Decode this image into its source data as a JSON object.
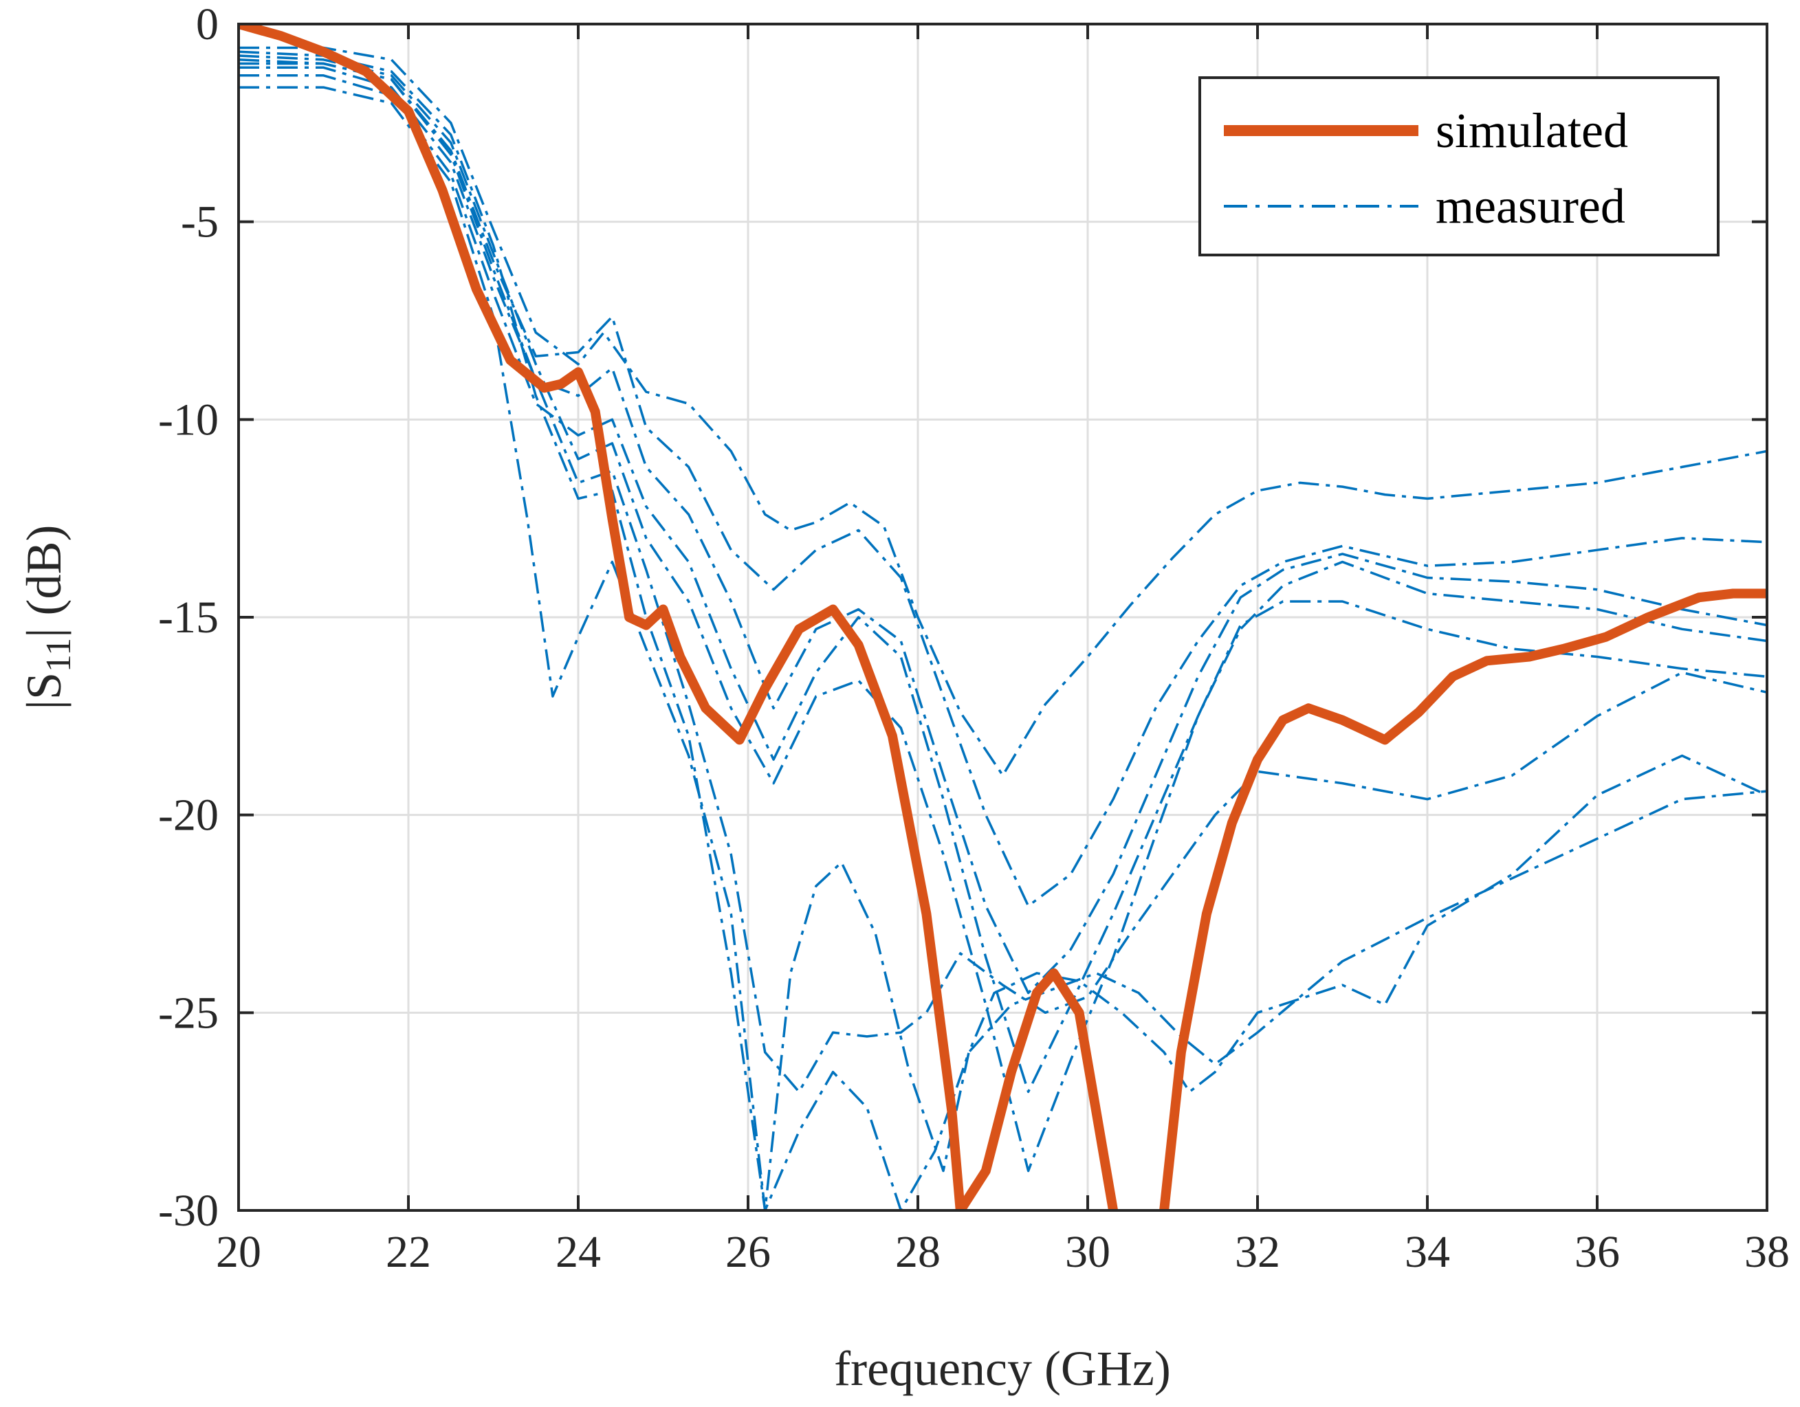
{
  "chart_data": {
    "type": "line",
    "title": "",
    "xlabel": "frequency (GHz)",
    "ylabel_main": "|S",
    "ylabel_sub": "11",
    "ylabel_tail": "| (dB)",
    "xlim": [
      20,
      38
    ],
    "ylim": [
      -30,
      0
    ],
    "xticks": [
      20,
      22,
      24,
      26,
      28,
      30,
      32,
      34,
      36,
      38
    ],
    "yticks": [
      0,
      -5,
      -10,
      -15,
      -20,
      -25,
      -30
    ],
    "xtick_labels": [
      "20",
      "22",
      "24",
      "26",
      "28",
      "30",
      "32",
      "34",
      "36",
      "38"
    ],
    "ytick_labels": [
      "0",
      "-5",
      "-10",
      "-15",
      "-20",
      "-25",
      "-30"
    ],
    "grid": true,
    "legend_position": "top-right",
    "legend": [
      {
        "label": "simulated",
        "color": "#D95319",
        "style": "solid"
      },
      {
        "label": "measured",
        "color": "#0072BD",
        "style": "dash-dot"
      }
    ],
    "series": [
      {
        "name": "simulated",
        "color": "#D95319",
        "style": "solid",
        "x": [
          20,
          20.5,
          21,
          21.5,
          22,
          22.4,
          22.8,
          23.2,
          23.6,
          23.8,
          24,
          24.2,
          24.4,
          24.6,
          24.8,
          25,
          25.2,
          25.5,
          25.9,
          26.2,
          26.6,
          27,
          27.3,
          27.7,
          28.1,
          28.4,
          28.5,
          28.8,
          29.1,
          29.4,
          29.6,
          29.9,
          30.1,
          30.3
        ],
        "y": [
          0,
          -0.3,
          -0.7,
          -1.2,
          -2.2,
          -4.2,
          -6.7,
          -8.5,
          -9.2,
          -9.1,
          -8.8,
          -9.8,
          -12.5,
          -15.0,
          -15.2,
          -14.8,
          -16.0,
          -17.3,
          -18.1,
          -16.8,
          -15.3,
          -14.8,
          -15.7,
          -18.0,
          -22.5,
          -27.5,
          -30,
          -29,
          -26.5,
          -24.5,
          -24.0,
          -25.0,
          -27.5,
          -30
        ]
      },
      {
        "name": "simulated-2",
        "color": "#D95319",
        "style": "solid",
        "x": [
          30.9,
          31.1,
          31.4,
          31.7,
          32.0,
          32.3,
          32.6,
          33.0,
          33.5,
          33.9,
          34.3,
          34.7,
          35.2,
          35.6,
          36.1,
          36.6,
          37.2,
          37.6,
          38
        ],
        "y": [
          -30,
          -26.0,
          -22.5,
          -20.2,
          -18.6,
          -17.6,
          -17.3,
          -17.6,
          -18.1,
          -17.4,
          -16.5,
          -16.1,
          -16.0,
          -15.8,
          -15.5,
          -15.0,
          -14.5,
          -14.4,
          -14.4
        ]
      },
      {
        "name": "measured-1",
        "color": "#0072BD",
        "style": "dash-dot",
        "x": [
          20,
          21,
          21.8,
          22.5,
          23,
          23.5,
          24,
          24.3,
          24.8,
          25.3,
          25.8,
          26.2,
          26.5,
          26.8,
          27.2,
          27.6,
          28,
          28.5,
          29,
          29.5,
          30,
          30.5,
          31,
          31.5,
          32,
          32.5,
          33,
          33.5,
          34,
          35,
          36,
          37,
          38
        ],
        "y": [
          -0.6,
          -0.6,
          -0.9,
          -2.5,
          -5.2,
          -7.8,
          -8.6,
          -7.8,
          -9.3,
          -9.6,
          -10.8,
          -12.4,
          -12.8,
          -12.6,
          -12.1,
          -12.7,
          -15.0,
          -17.4,
          -19.0,
          -17.2,
          -16.0,
          -14.7,
          -13.5,
          -12.4,
          -11.8,
          -11.6,
          -11.7,
          -11.9,
          -12.0,
          -11.8,
          -11.6,
          -11.2,
          -10.8
        ]
      },
      {
        "name": "measured-2",
        "color": "#0072BD",
        "style": "dash-dot",
        "x": [
          20,
          21,
          21.8,
          22.5,
          23,
          23.5,
          24,
          24.4,
          24.8,
          25.3,
          25.8,
          26.3,
          26.8,
          27.3,
          27.8,
          28.3,
          28.8,
          29.3,
          29.8,
          30.3,
          30.8,
          31.3,
          31.8,
          32.3,
          33,
          34,
          35,
          36,
          37,
          38
        ],
        "y": [
          -0.9,
          -1.0,
          -1.4,
          -3.2,
          -6.0,
          -8.4,
          -8.3,
          -7.4,
          -10.2,
          -11.2,
          -13.3,
          -14.3,
          -13.3,
          -12.8,
          -14.0,
          -17.0,
          -20.0,
          -22.3,
          -21.5,
          -19.6,
          -17.3,
          -15.6,
          -14.2,
          -13.6,
          -13.2,
          -13.7,
          -13.6,
          -13.3,
          -13.0,
          -13.1
        ]
      },
      {
        "name": "measured-3",
        "color": "#0072BD",
        "style": "dash-dot",
        "x": [
          20,
          21,
          21.8,
          22.5,
          23,
          23.5,
          24,
          24.4,
          24.8,
          25.3,
          25.8,
          26.3,
          26.8,
          27.3,
          27.8,
          28.3,
          28.8,
          29.3,
          29.8,
          30.3,
          30.8,
          31.3,
          31.8,
          32.3,
          33,
          34,
          35,
          36,
          37,
          38
        ],
        "y": [
          -1.1,
          -1.1,
          -1.6,
          -3.5,
          -6.4,
          -9.0,
          -9.4,
          -8.7,
          -11.2,
          -12.4,
          -14.6,
          -17.3,
          -15.3,
          -14.8,
          -15.6,
          -19.0,
          -22.3,
          -24.5,
          -23.4,
          -21.5,
          -19.0,
          -16.5,
          -14.5,
          -13.8,
          -13.4,
          -14.0,
          -14.1,
          -14.3,
          -14.8,
          -15.2
        ]
      },
      {
        "name": "measured-4",
        "color": "#0072BD",
        "style": "dash-dot",
        "x": [
          20,
          21,
          21.8,
          22.5,
          23,
          23.5,
          24,
          24.4,
          24.8,
          25.3,
          25.8,
          26.3,
          26.8,
          27.3,
          27.8,
          28.3,
          28.8,
          29.3,
          29.8,
          30.3,
          30.8,
          31.3,
          31.8,
          32.3,
          33,
          34,
          35,
          36,
          37,
          38
        ],
        "y": [
          -1.3,
          -1.3,
          -1.8,
          -3.8,
          -6.8,
          -9.6,
          -10.4,
          -10.0,
          -12.2,
          -13.6,
          -16.3,
          -18.6,
          -16.4,
          -15.0,
          -16.0,
          -19.6,
          -23.6,
          -27.0,
          -24.8,
          -22.5,
          -20.0,
          -17.5,
          -15.3,
          -14.2,
          -13.6,
          -14.4,
          -14.6,
          -14.8,
          -15.3,
          -15.6
        ]
      },
      {
        "name": "measured-5",
        "color": "#0072BD",
        "style": "dash-dot",
        "x": [
          20,
          21,
          21.8,
          22.5,
          23,
          23.5,
          24,
          24.4,
          24.8,
          25.3,
          25.8,
          26.3,
          26.8,
          27.3,
          27.8,
          28.3,
          28.8,
          29.3,
          29.8,
          30.3,
          30.8,
          31.3,
          31.8,
          32.3,
          33,
          34,
          35,
          36,
          37,
          38
        ],
        "y": [
          -0.8,
          -0.9,
          -1.3,
          -3.0,
          -5.8,
          -8.6,
          -11.0,
          -10.6,
          -13.0,
          -14.6,
          -17.3,
          -19.2,
          -17.0,
          -16.6,
          -17.8,
          -21.0,
          -24.8,
          -29.0,
          -26.2,
          -23.6,
          -20.5,
          -17.5,
          -15.2,
          -14.6,
          -14.6,
          -15.3,
          -15.8,
          -16.0,
          -16.3,
          -16.5
        ]
      },
      {
        "name": "measured-6",
        "color": "#0072BD",
        "style": "dash-dot",
        "x": [
          20,
          21,
          21.8,
          22.5,
          23,
          23.5,
          24,
          24.4,
          24.8,
          25.3,
          25.8,
          26.2,
          26.6,
          27.0,
          27.4,
          27.8,
          28.1,
          28.5,
          29.0,
          29.5,
          30.0,
          30.5,
          31.0,
          31.5,
          32,
          33,
          34,
          35,
          36,
          37,
          38
        ],
        "y": [
          -1.0,
          -1.0,
          -1.4,
          -3.3,
          -6.2,
          -9.0,
          -11.6,
          -11.3,
          -13.8,
          -17.2,
          -21.0,
          -26.0,
          -27.0,
          -25.5,
          -25.6,
          -25.5,
          -25.0,
          -23.5,
          -24.3,
          -25.0,
          -24.6,
          -23.0,
          -21.5,
          -20.0,
          -18.9,
          -19.2,
          -19.6,
          -19.0,
          -17.5,
          -16.4,
          -16.9
        ]
      },
      {
        "name": "measured-7",
        "color": "#0072BD",
        "style": "dash-dot",
        "x": [
          20,
          21,
          21.8,
          22.5,
          23,
          23.4,
          23.7,
          24.0,
          24.4,
          24.8,
          25.3,
          25.8,
          26.2,
          26.5,
          26.8,
          27.1,
          27.5,
          27.9,
          28.3,
          28.6,
          28.9,
          29.4,
          29.9,
          30.4,
          30.9,
          31.2,
          31.5,
          32,
          33,
          33.5,
          34,
          35,
          36,
          37,
          38
        ],
        "y": [
          -1.6,
          -1.6,
          -2.0,
          -4.0,
          -7.4,
          -12.5,
          -17.0,
          -15.5,
          -13.6,
          -15.8,
          -18.5,
          -22.5,
          -30.0,
          -24.0,
          -21.8,
          -21.2,
          -23.0,
          -26.5,
          -29.0,
          -26.0,
          -24.5,
          -24.0,
          -24.2,
          -25.0,
          -26.0,
          -27.0,
          -26.5,
          -25.0,
          -24.3,
          -24.8,
          -22.8,
          -21.5,
          -19.5,
          -18.5,
          -19.5
        ]
      },
      {
        "name": "measured-8",
        "color": "#0072BD",
        "style": "dash-dot",
        "x": [
          20,
          21,
          21.8,
          22.5,
          23,
          23.5,
          24,
          24.4,
          24.8,
          25.3,
          25.8,
          26.2,
          26.6,
          27.0,
          27.4,
          27.8,
          28.2,
          28.6,
          29.1,
          29.6,
          30.1,
          30.6,
          31.1,
          31.5,
          32,
          33,
          34,
          35,
          36,
          37,
          38
        ],
        "y": [
          -0.7,
          -0.8,
          -1.2,
          -2.8,
          -5.6,
          -9.4,
          -12.0,
          -11.8,
          -15.0,
          -18.0,
          -24.0,
          -30.0,
          -28.0,
          -26.5,
          -27.4,
          -30.0,
          -28.5,
          -26.0,
          -24.8,
          -24.4,
          -24.0,
          -24.5,
          -25.6,
          -26.3,
          -25.5,
          -23.7,
          -22.6,
          -21.6,
          -20.6,
          -19.6,
          -19.4
        ]
      }
    ]
  }
}
